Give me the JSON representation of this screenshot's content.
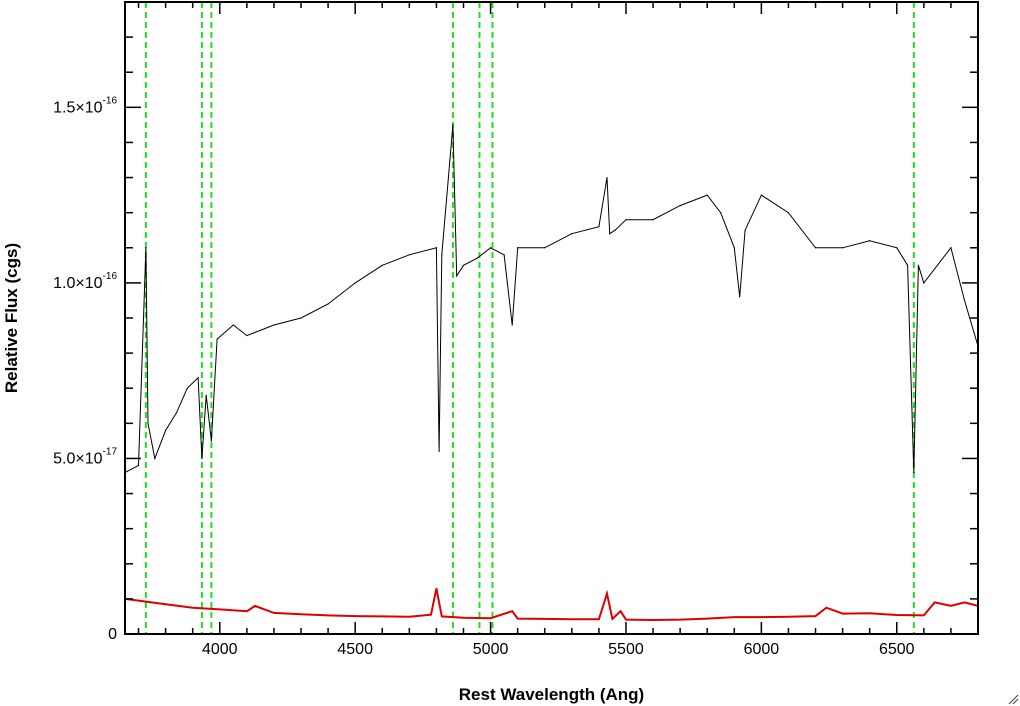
{
  "chart_data": {
    "type": "line",
    "title": "",
    "xlabel": "Rest Wavelength (Ang)",
    "ylabel": "Relative Flux (cgs)",
    "xlim": [
      3650,
      6800
    ],
    "ylim": [
      0,
      1.8e-16
    ],
    "grid": false,
    "legend": "none",
    "x_ticks": [
      {
        "value": 4000,
        "label": "4000"
      },
      {
        "value": 4500,
        "label": "4500"
      },
      {
        "value": 5000,
        "label": "5000"
      },
      {
        "value": 5500,
        "label": "5500"
      },
      {
        "value": 6000,
        "label": "6000"
      },
      {
        "value": 6500,
        "label": "6500"
      }
    ],
    "y_ticks": [
      {
        "value": 0,
        "mantissa": "0",
        "exponent": ""
      },
      {
        "value": 5e-17,
        "mantissa": "5.0×10",
        "exponent": "-17"
      },
      {
        "value": 1e-16,
        "mantissa": "1.0×10",
        "exponent": "-16"
      },
      {
        "value": 1.5e-16,
        "mantissa": "1.5×10",
        "exponent": "-16"
      }
    ],
    "reference_lines": {
      "orientation": "vertical",
      "style": "dashed",
      "color": "#22dd22",
      "x": [
        3727,
        3934,
        3969,
        4861,
        4959,
        5007,
        6563
      ]
    },
    "series": [
      {
        "role": "spectrum",
        "color": "#000000",
        "x": [
          3650,
          3700,
          3727,
          3735,
          3760,
          3800,
          3840,
          3880,
          3920,
          3934,
          3950,
          3969,
          3990,
          4050,
          4100,
          4200,
          4300,
          4400,
          4500,
          4600,
          4700,
          4800,
          4810,
          4820,
          4861,
          4875,
          4900,
          4950,
          5000,
          5050,
          5080,
          5100,
          5200,
          5300,
          5400,
          5430,
          5440,
          5460,
          5500,
          5600,
          5700,
          5800,
          5850,
          5900,
          5920,
          5940,
          6000,
          6100,
          6200,
          6300,
          6400,
          6500,
          6540,
          6563,
          6580,
          6600,
          6700,
          6750,
          6800
        ],
        "y": [
          4.6e-17,
          4.8e-17,
          1.1e-16,
          6e-17,
          5e-17,
          5.8e-17,
          6.3e-17,
          7e-17,
          7.3e-17,
          5e-17,
          6.8e-17,
          5.5e-17,
          8.4e-17,
          8.8e-17,
          8.5e-17,
          8.8e-17,
          9e-17,
          9.4e-17,
          1e-16,
          1.05e-16,
          1.08e-16,
          1.1e-16,
          5.2e-17,
          1.08e-16,
          1.45e-16,
          1.02e-16,
          1.05e-16,
          1.07e-16,
          1.1e-16,
          1.08e-16,
          8.8e-17,
          1.1e-16,
          1.1e-16,
          1.14e-16,
          1.16e-16,
          1.3e-16,
          1.14e-16,
          1.15e-16,
          1.18e-16,
          1.18e-16,
          1.22e-16,
          1.25e-16,
          1.2e-16,
          1.1e-16,
          9.6e-17,
          1.15e-16,
          1.25e-16,
          1.2e-16,
          1.1e-16,
          1.1e-16,
          1.12e-16,
          1.1e-16,
          1.05e-16,
          4.6e-17,
          1.05e-16,
          1e-16,
          1.1e-16,
          9.5e-17,
          8.2e-17
        ]
      },
      {
        "role": "error",
        "color": "#dd0000",
        "x": [
          3650,
          3700,
          3800,
          3900,
          4000,
          4100,
          4130,
          4200,
          4300,
          4400,
          4500,
          4600,
          4700,
          4780,
          4800,
          4820,
          4900,
          5000,
          5080,
          5100,
          5200,
          5300,
          5400,
          5430,
          5450,
          5480,
          5500,
          5600,
          5700,
          5800,
          5900,
          6000,
          6100,
          6200,
          6240,
          6300,
          6400,
          6500,
          6600,
          6640,
          6700,
          6750,
          6800
        ],
        "y": [
          1e-17,
          9.5e-18,
          8.5e-18,
          7.5e-18,
          7e-18,
          6.5e-18,
          8e-18,
          6e-18,
          5.6e-18,
          5.3e-18,
          5.1e-18,
          5e-18,
          4.9e-18,
          5.5e-18,
          1.3e-17,
          5e-18,
          4.6e-18,
          4.5e-18,
          6.5e-18,
          4.4e-18,
          4.3e-18,
          4.2e-18,
          4.2e-18,
          1.15e-17,
          4.3e-18,
          6.5e-18,
          4.1e-18,
          4e-18,
          4.1e-18,
          4.4e-18,
          4.8e-18,
          4.8e-18,
          4.9e-18,
          5.1e-18,
          7.5e-18,
          5.8e-18,
          5.9e-18,
          5.4e-18,
          5.3e-18,
          9e-18,
          8e-18,
          9e-18,
          8e-18
        ]
      }
    ]
  }
}
